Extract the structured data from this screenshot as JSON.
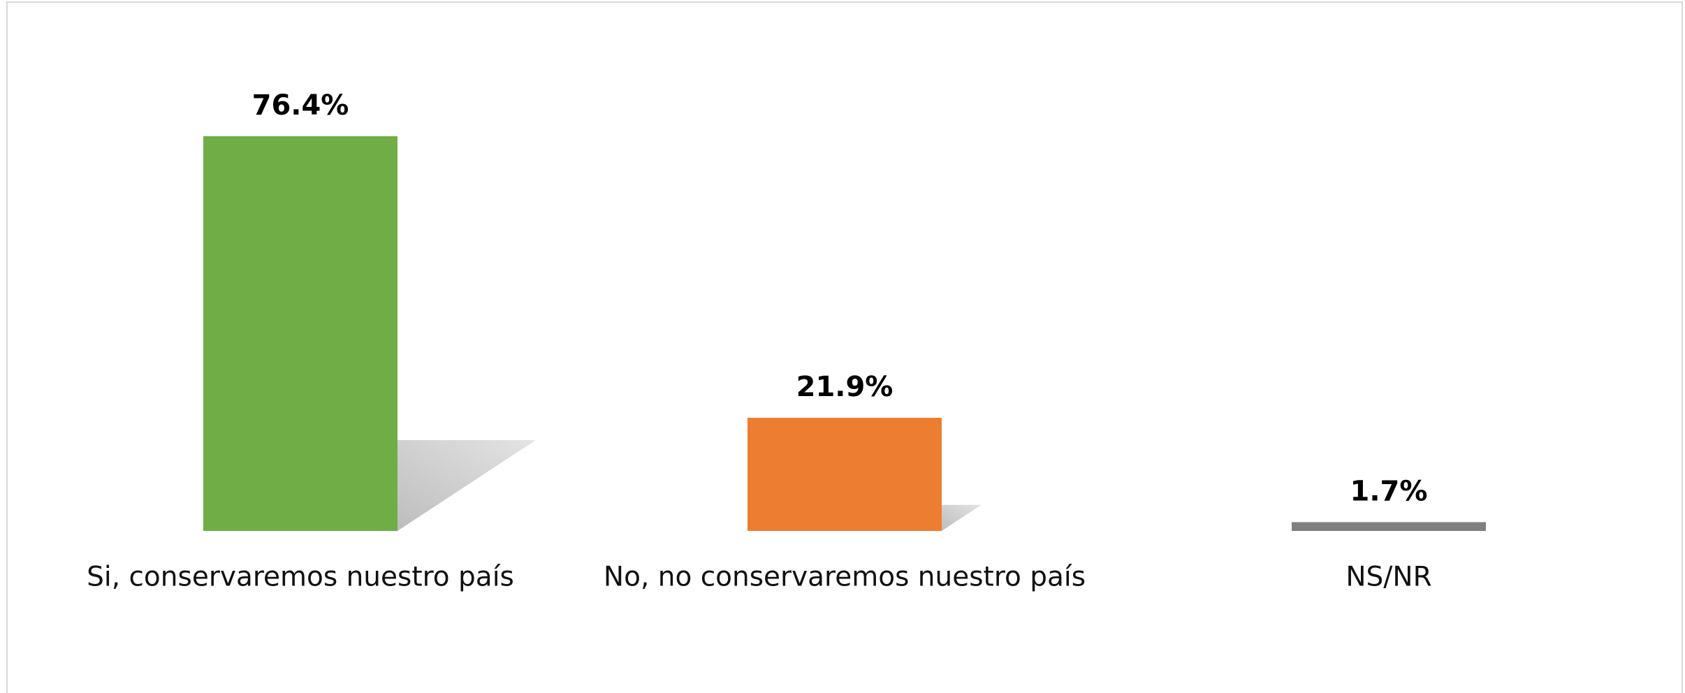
{
  "chart_data": {
    "type": "bar",
    "categories": [
      "Si, conservaremos nuestro país",
      "No, no conservaremos nuestro país",
      "NS/NR"
    ],
    "values": [
      76.4,
      21.9,
      1.7
    ],
    "value_labels": [
      "76.4%",
      "21.9%",
      "1.7%"
    ],
    "colors": [
      "#70ad47",
      "#ed7d31",
      "#808080"
    ]
  }
}
